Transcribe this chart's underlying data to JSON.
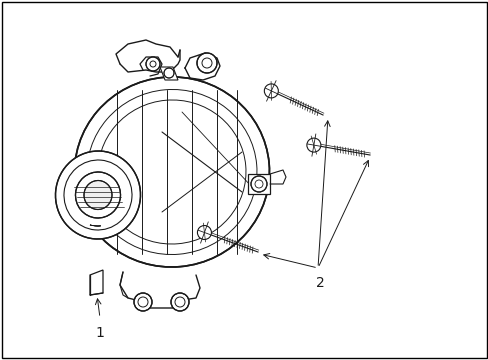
{
  "background_color": "#ffffff",
  "line_color": "#1a1a1a",
  "figsize": [
    4.89,
    3.6
  ],
  "dpi": 100,
  "label1_text": "1",
  "label2_text": "2",
  "border": true
}
